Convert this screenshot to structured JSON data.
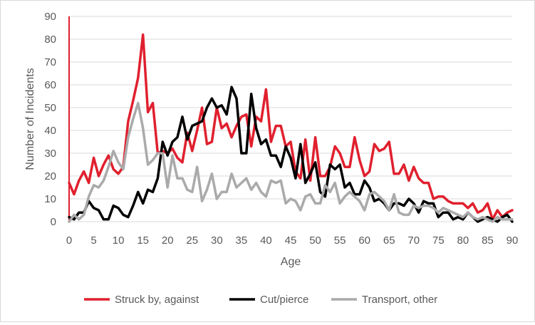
{
  "chart_data": {
    "type": "line",
    "title": "",
    "xlabel": "Age",
    "ylabel": "Number of Incidents",
    "xlim": [
      0,
      90
    ],
    "ylim": [
      0,
      90
    ],
    "x_ticks": [
      "0",
      "5",
      "10",
      "15",
      "20",
      "25",
      "30",
      "35",
      "40",
      "45",
      "50",
      "55",
      "60",
      "65",
      "70",
      "75",
      "80",
      "85",
      "90"
    ],
    "y_ticks": [
      "0",
      "10",
      "20",
      "30",
      "40",
      "50",
      "60",
      "70",
      "80",
      "90"
    ],
    "grid": "horizontal",
    "legend_position": "bottom",
    "x": [
      0,
      1,
      2,
      3,
      4,
      5,
      6,
      7,
      8,
      9,
      10,
      11,
      12,
      13,
      14,
      15,
      16,
      17,
      18,
      19,
      20,
      21,
      22,
      23,
      24,
      25,
      26,
      27,
      28,
      29,
      30,
      31,
      32,
      33,
      34,
      35,
      36,
      37,
      38,
      39,
      40,
      41,
      42,
      43,
      44,
      45,
      46,
      47,
      48,
      49,
      50,
      51,
      52,
      53,
      54,
      55,
      56,
      57,
      58,
      59,
      60,
      61,
      62,
      63,
      64,
      65,
      66,
      67,
      68,
      69,
      70,
      71,
      72,
      73,
      74,
      75,
      76,
      77,
      78,
      79,
      80,
      81,
      82,
      83,
      84,
      85,
      86,
      87,
      88,
      89,
      90
    ],
    "series": [
      {
        "name": "Struck by, against",
        "color": "#e0202e",
        "values": [
          17,
          12,
          18,
          22,
          17,
          28,
          20,
          25,
          29,
          23,
          21,
          24,
          44,
          53,
          63,
          82,
          48,
          52,
          30,
          31,
          30,
          32,
          28,
          26,
          39,
          31,
          40,
          50,
          34,
          35,
          50,
          41,
          43,
          37,
          42,
          46,
          47,
          33,
          46,
          44,
          58,
          35,
          42,
          42,
          33,
          35,
          22,
          19,
          36,
          18,
          37,
          20,
          20,
          24,
          33,
          30,
          24,
          24,
          37,
          27,
          20,
          22,
          34,
          31,
          32,
          35,
          21,
          21,
          25,
          18,
          24,
          19,
          17,
          17,
          10,
          11,
          11,
          9,
          8,
          8,
          8,
          6,
          8,
          4,
          5,
          8,
          1,
          5,
          2,
          4,
          5
        ]
      },
      {
        "name": "Cut/pierce",
        "color": "#000000",
        "values": [
          2,
          1,
          4,
          4,
          9,
          6,
          5,
          1,
          1,
          7,
          6,
          3,
          2,
          7,
          13,
          8,
          14,
          13,
          19,
          35,
          29,
          35,
          37,
          46,
          36,
          42,
          43,
          44,
          50,
          54,
          50,
          51,
          47,
          59,
          54,
          30,
          30,
          56,
          41,
          34,
          36,
          29,
          29,
          24,
          33,
          28,
          19,
          34,
          17,
          21,
          26,
          13,
          11,
          25,
          23,
          25,
          15,
          17,
          12,
          12,
          18,
          15,
          9,
          10,
          8,
          5,
          8,
          8,
          7,
          10,
          8,
          4,
          9,
          8,
          8,
          2,
          4,
          4,
          1,
          2,
          1,
          4,
          2,
          0,
          1,
          2,
          1,
          0,
          2,
          3,
          0
        ]
      },
      {
        "name": "Transport, other",
        "color": "#aaaaaa",
        "values": [
          0,
          3,
          1,
          3,
          11,
          16,
          15,
          18,
          24,
          31,
          26,
          23,
          37,
          45,
          52,
          41,
          25,
          27,
          30,
          30,
          15,
          29,
          19,
          19,
          14,
          13,
          24,
          9,
          14,
          21,
          10,
          13,
          13,
          21,
          15,
          17,
          19,
          14,
          17,
          13,
          11,
          18,
          17,
          18,
          8,
          10,
          9,
          5,
          11,
          12,
          8,
          8,
          16,
          13,
          17,
          8,
          11,
          13,
          11,
          9,
          5,
          12,
          13,
          11,
          9,
          5,
          12,
          4,
          3,
          3,
          7,
          6,
          7,
          7,
          6,
          4,
          6,
          5,
          4,
          3,
          2,
          4,
          2,
          1,
          2,
          1,
          0,
          2,
          1,
          1,
          1
        ]
      }
    ]
  }
}
